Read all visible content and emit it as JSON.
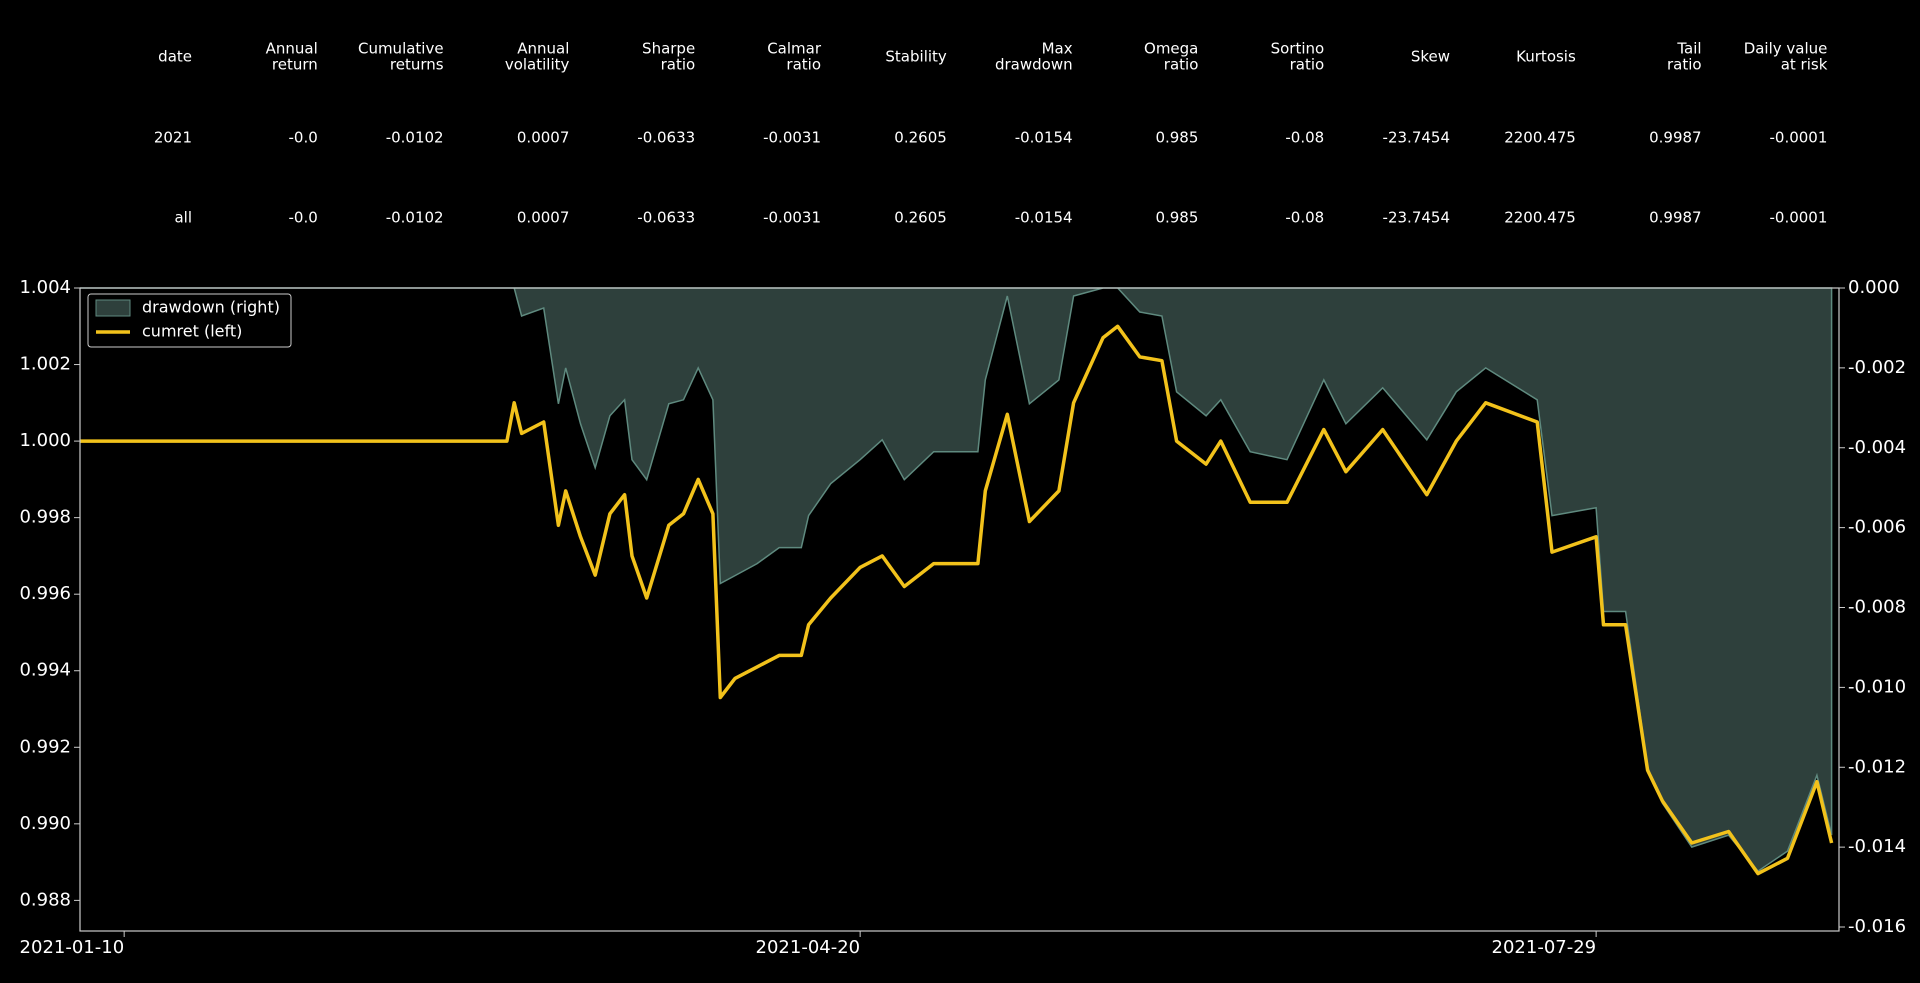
{
  "table": {
    "columns": [
      [
        "date"
      ],
      [
        "Annual",
        "return"
      ],
      [
        "Cumulative",
        "returns"
      ],
      [
        "Annual",
        "volatility"
      ],
      [
        "Sharpe",
        "ratio"
      ],
      [
        "Calmar",
        "ratio"
      ],
      [
        "Stability"
      ],
      [
        "Max",
        "drawdown"
      ],
      [
        "Omega",
        "ratio"
      ],
      [
        "Sortino",
        "ratio"
      ],
      [
        "Skew"
      ],
      [
        "Kurtosis"
      ],
      [
        "Tail",
        "ratio"
      ],
      [
        "Daily value",
        "at risk"
      ]
    ],
    "rows": [
      [
        "2021",
        "-0.0",
        "-0.0102",
        "0.0007",
        "-0.0633",
        "-0.0031",
        "0.2605",
        "-0.0154",
        "0.985",
        "-0.08",
        "-23.7454",
        "2200.475",
        "0.9987",
        "-0.0001"
      ],
      [
        "all",
        "-0.0",
        "-0.0102",
        "0.0007",
        "-0.0633",
        "-0.0031",
        "0.2605",
        "-0.0154",
        "0.985",
        "-0.08",
        "-23.7454",
        "2200.475",
        "0.9987",
        "-0.0001"
      ]
    ]
  },
  "chart_data": {
    "type": "line",
    "legend": "upper left",
    "x": [
      "2021-01-04",
      "2021-03-03",
      "2021-03-04",
      "2021-03-05",
      "2021-03-08",
      "2021-03-10",
      "2021-03-11",
      "2021-03-13",
      "2021-03-15",
      "2021-03-17",
      "2021-03-19",
      "2021-03-20",
      "2021-03-22",
      "2021-03-25",
      "2021-03-27",
      "2021-03-29",
      "2021-03-31",
      "2021-04-01",
      "2021-04-03",
      "2021-04-06",
      "2021-04-09",
      "2021-04-12",
      "2021-04-13",
      "2021-04-16",
      "2021-04-20",
      "2021-04-23",
      "2021-04-26",
      "2021-04-30",
      "2021-05-06",
      "2021-05-07",
      "2021-05-10",
      "2021-05-13",
      "2021-05-17",
      "2021-05-19",
      "2021-05-23",
      "2021-05-25",
      "2021-05-28",
      "2021-05-31",
      "2021-06-02",
      "2021-06-06",
      "2021-06-08",
      "2021-06-12",
      "2021-06-17",
      "2021-06-22",
      "2021-06-25",
      "2021-06-30",
      "2021-07-06",
      "2021-07-10",
      "2021-07-14",
      "2021-07-21",
      "2021-07-23",
      "2021-07-29",
      "2021-07-30",
      "2021-08-02",
      "2021-08-05",
      "2021-08-07",
      "2021-08-11",
      "2021-08-16",
      "2021-08-20",
      "2021-08-24",
      "2021-08-28",
      "2021-08-30"
    ],
    "series": [
      {
        "name": "drawdown (right)",
        "kind": "area",
        "axis": "y2",
        "color": "#2e403c",
        "edge": "#5f8a7f",
        "values": [
          0,
          0,
          0,
          -0.0007,
          -0.0005,
          -0.0029,
          -0.002,
          -0.0034,
          -0.0045,
          -0.0032,
          -0.0028,
          -0.0043,
          -0.0048,
          -0.0029,
          -0.0028,
          -0.002,
          -0.0028,
          -0.0074,
          -0.0072,
          -0.0069,
          -0.0065,
          -0.0065,
          -0.0057,
          -0.0049,
          -0.0043,
          -0.0038,
          -0.0048,
          -0.0041,
          -0.0041,
          -0.0023,
          -0.0002,
          -0.0029,
          -0.0023,
          -0.0002,
          0,
          0,
          -0.0006,
          -0.0007,
          -0.0026,
          -0.0032,
          -0.0028,
          -0.0041,
          -0.0043,
          -0.0023,
          -0.0034,
          -0.0025,
          -0.0038,
          -0.0026,
          -0.002,
          -0.0028,
          -0.0057,
          -0.0055,
          -0.0081,
          -0.0081,
          -0.012,
          -0.0129,
          -0.014,
          -0.0137,
          -0.0146,
          -0.0141,
          -0.0122,
          -0.0137
        ]
      },
      {
        "name": "cumret (left)",
        "kind": "line",
        "axis": "y",
        "color": "#f2c21b",
        "values": [
          1.0,
          1.0,
          1.001,
          1.0002,
          1.0005,
          0.9978,
          0.9987,
          0.9975,
          0.9965,
          0.9981,
          0.9986,
          0.997,
          0.9959,
          0.9978,
          0.9981,
          0.999,
          0.9981,
          0.9933,
          0.9938,
          0.9941,
          0.9944,
          0.9944,
          0.9952,
          0.9959,
          0.9967,
          0.997,
          0.9962,
          0.9968,
          0.9968,
          0.9987,
          1.0007,
          0.9979,
          0.9987,
          1.001,
          1.0027,
          1.003,
          1.0022,
          1.0021,
          1.0,
          0.9994,
          1.0,
          0.9984,
          0.9984,
          1.0003,
          0.9992,
          1.0003,
          0.9986,
          1.0,
          1.001,
          1.0005,
          0.9971,
          0.9975,
          0.9952,
          0.9952,
          0.9914,
          0.9906,
          0.9895,
          0.9898,
          0.9887,
          0.9891,
          0.9911,
          0.9895
        ]
      }
    ],
    "xlim": [
      "2021-01-04",
      "2021-08-31"
    ],
    "xticks": [
      "2021-01-10",
      "2021-04-20",
      "2021-07-29"
    ],
    "ylim": [
      0.9872,
      1.004
    ],
    "yticks": [
      0.988,
      {
        "value": 0.99,
        "label": "0.990"
      },
      0.992,
      0.994,
      0.996,
      0.998,
      {
        "value": 1,
        "label": "1.000"
      },
      1.002,
      1.004
    ],
    "y2lim": [
      -0.0161,
      0
    ],
    "y2ticks": [
      -0.016,
      -0.014,
      -0.012,
      {
        "value": -0.01,
        "label": "-0.010"
      },
      -0.008,
      -0.006,
      -0.004,
      -0.002,
      {
        "value": 0,
        "label": "0.000"
      }
    ]
  }
}
